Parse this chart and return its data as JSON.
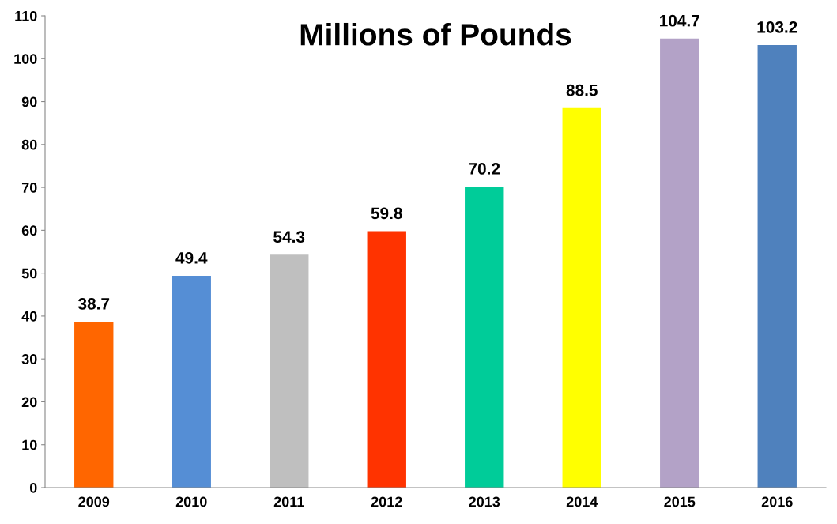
{
  "chart_data": {
    "type": "bar",
    "title": "Millions of Pounds",
    "categories": [
      "2009",
      "2010",
      "2011",
      "2012",
      "2013",
      "2014",
      "2015",
      "2016"
    ],
    "values": [
      38.7,
      49.4,
      54.3,
      59.8,
      70.2,
      88.5,
      104.7,
      103.2
    ],
    "colors": [
      "#ff6600",
      "#558ed5",
      "#bfbfbf",
      "#ff3300",
      "#00cc99",
      "#ffff00",
      "#b3a2c7",
      "#4f81bd"
    ],
    "ylim": [
      0,
      110
    ],
    "yticks": [
      0,
      10,
      20,
      30,
      40,
      50,
      60,
      70,
      80,
      90,
      100,
      110
    ],
    "data_labels": true,
    "grid": false,
    "legend": false
  }
}
